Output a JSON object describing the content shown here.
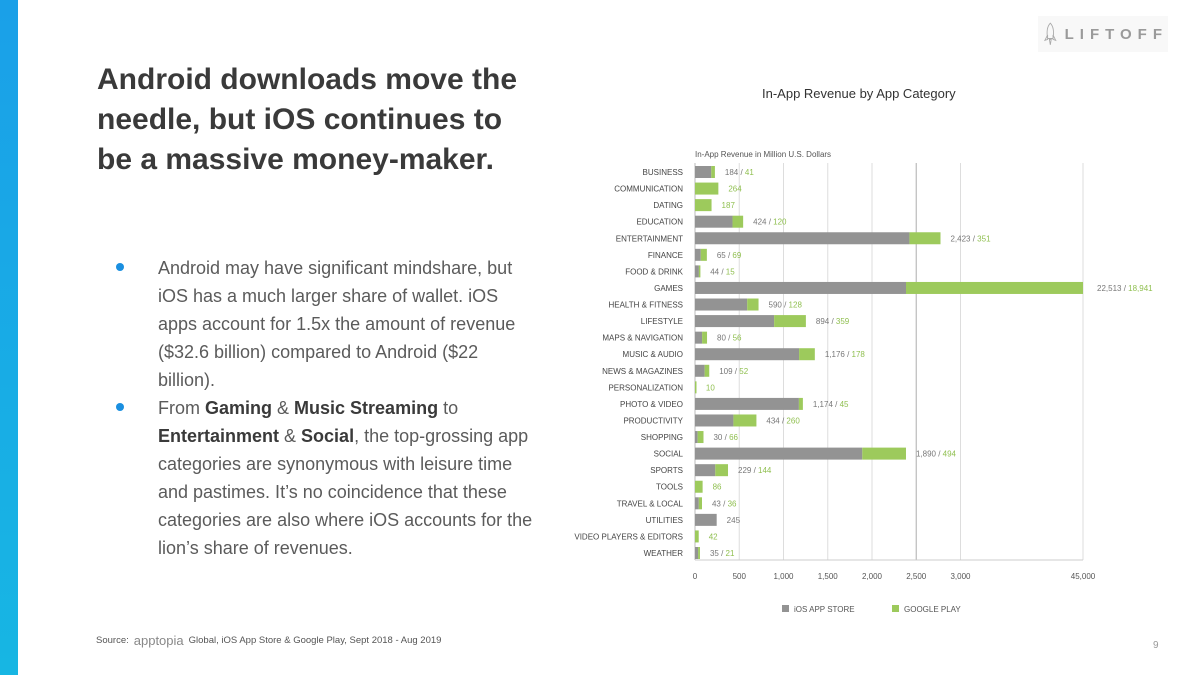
{
  "brand": {
    "logo_text": "LIFTOFF"
  },
  "slide": {
    "title": "Android downloads move the needle, but iOS continues to be a massive money-maker.",
    "bullets": [
      {
        "parts": [
          {
            "t": "Android may have significant mindshare, but iOS has a much larger share of wallet. iOS apps account for 1.5x the amount of revenue ($32.6 billion) compared to Android ($22 billion).",
            "b": false
          }
        ]
      },
      {
        "parts": [
          {
            "t": "From ",
            "b": false
          },
          {
            "t": "Gaming",
            "b": true
          },
          {
            "t": " & ",
            "b": false
          },
          {
            "t": "Music Streaming",
            "b": true
          },
          {
            "t": " to ",
            "b": false
          },
          {
            "t": "Entertainment",
            "b": true
          },
          {
            "t": " & ",
            "b": false
          },
          {
            "t": "Social",
            "b": true
          },
          {
            "t": ", the top-grossing app categories are synonymous with leisure time and pastimes. It’s no coincidence that these categories are also where iOS accounts for the lion’s share of revenues.",
            "b": false
          }
        ]
      }
    ],
    "source_label": "Source:",
    "source_brand": "apptopia",
    "source_text": "Global, iOS App Store & Google Play, Sept 2018 - Aug 2019",
    "page_number": "9"
  },
  "chart_data": {
    "type": "bar",
    "stacked": true,
    "orientation": "horizontal",
    "title": "In-App Revenue by App Category",
    "subtitle": "In-App Revenue in Million U.S. Dollars",
    "categories": [
      "BUSINESS",
      "COMMUNICATION",
      "DATING",
      "EDUCATION",
      "ENTERTAINMENT",
      "FINANCE",
      "FOOD & DRINK",
      "GAMES",
      "HEALTH & FITNESS",
      "LIFESTYLE",
      "MAPS & NAVIGATION",
      "MUSIC & AUDIO",
      "NEWS & MAGAZINES",
      "PERSONALIZATION",
      "PHOTO & VIDEO",
      "PRODUCTIVITY",
      "SHOPPING",
      "SOCIAL",
      "SPORTS",
      "TOOLS",
      "TRAVEL & LOCAL",
      "UTILITIES",
      "VIDEO PLAYERS & EDITORS",
      "WEATHER"
    ],
    "series": [
      {
        "name": "iOS APP STORE",
        "color": "#939393",
        "values": [
          184,
          null,
          null,
          424,
          2423,
          65,
          44,
          22513,
          590,
          894,
          80,
          1176,
          109,
          null,
          1174,
          434,
          30,
          1890,
          229,
          null,
          43,
          245,
          null,
          35
        ]
      },
      {
        "name": "GOOGLE PLAY",
        "color": "#9dca5c",
        "values": [
          41,
          264,
          187,
          120,
          351,
          69,
          15,
          18941,
          128,
          359,
          56,
          178,
          52,
          10,
          45,
          260,
          66,
          494,
          144,
          86,
          36,
          null,
          42,
          21
        ]
      }
    ],
    "xticks": [
      "0",
      "500",
      "1,000",
      "1,500",
      "2,000",
      "2,500",
      "3,000",
      "45,000"
    ],
    "xtick_values": [
      0,
      500,
      1000,
      1500,
      2000,
      2500,
      3000,
      45000
    ],
    "axis_break": [
      3000,
      45000
    ],
    "legend_position": "bottom"
  }
}
